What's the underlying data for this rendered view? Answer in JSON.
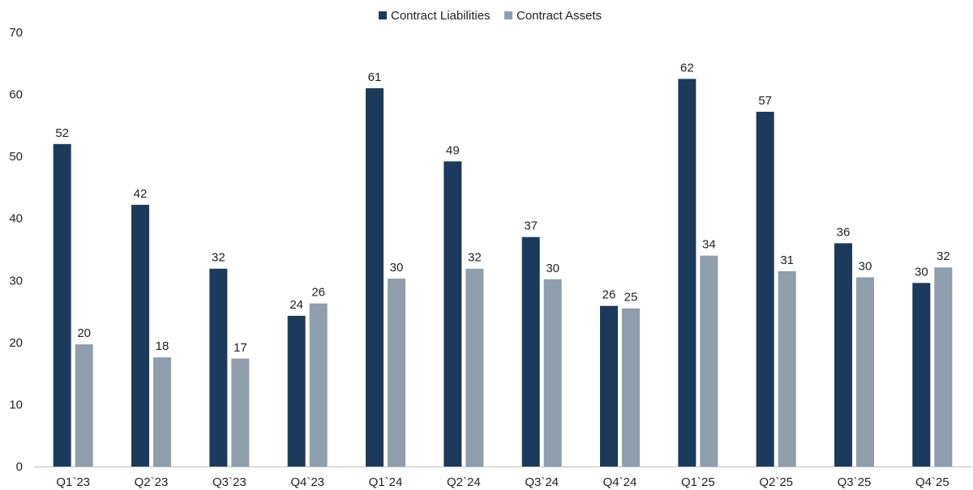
{
  "chart_data": {
    "type": "bar",
    "categories": [
      "Q1`23",
      "Q2`23",
      "Q3`23",
      "Q4`23",
      "Q1`24",
      "Q2`24",
      "Q3`24",
      "Q4`24",
      "Q1`25",
      "Q2`25",
      "Q3`25",
      "Q4`25"
    ],
    "series": [
      {
        "name": "Contract Liabilities",
        "color": "#1c3a5b",
        "values": [
          52,
          42.2,
          31.9,
          24.3,
          61,
          49.2,
          37,
          25.9,
          62.5,
          57.2,
          36,
          29.6
        ],
        "labels": [
          "52",
          "42",
          "32",
          "24",
          "61",
          "49",
          "37",
          "26",
          "62",
          "57",
          "36",
          "30"
        ]
      },
      {
        "name": "Contract Assets",
        "color": "#8e9eac",
        "values": [
          19.7,
          17.6,
          17.4,
          26.3,
          30.3,
          31.9,
          30.2,
          25.5,
          34,
          31.5,
          30.5,
          32.1
        ],
        "labels": [
          "20",
          "18",
          "17",
          "26",
          "30",
          "32",
          "30",
          "25",
          "34",
          "31",
          "30",
          "32"
        ]
      }
    ],
    "y_ticks": [
      "0",
      "10",
      "20",
      "30",
      "40",
      "50",
      "60",
      "70"
    ],
    "ylim": [
      0,
      70
    ],
    "grid": false,
    "legend_position": "top-center",
    "title": "",
    "xlabel": "",
    "ylabel": ""
  }
}
